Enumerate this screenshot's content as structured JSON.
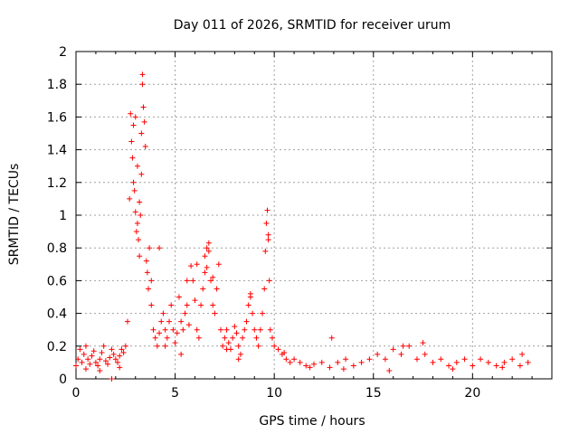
{
  "chart_data": {
    "type": "scatter",
    "title": "Day 011 of 2026, SRMTID for receiver urum",
    "xlabel": "GPS time / hours",
    "ylabel": "SRMTID / TECUs",
    "xlim": [
      0,
      24
    ],
    "ylim": [
      0,
      2
    ],
    "xticks": [
      0,
      5,
      10,
      15,
      20
    ],
    "yticks": [
      0,
      0.2,
      0.4,
      0.6,
      0.8,
      1,
      1.2,
      1.4,
      1.6,
      1.8,
      2
    ],
    "xtick_labels": [
      "0",
      "5",
      "10",
      "15",
      "20"
    ],
    "ytick_labels": [
      "0",
      "0.2",
      "0.4",
      "0.6",
      "0.8",
      "1",
      "1.2",
      "1.4",
      "1.6",
      "1.8",
      "2"
    ],
    "grid": true,
    "marker": "+",
    "color": "#ff0000",
    "series": [
      {
        "name": "SRMTID",
        "x": [
          0.0,
          0.1,
          0.2,
          0.3,
          0.4,
          0.5,
          0.6,
          0.7,
          0.8,
          0.9,
          1.0,
          1.1,
          1.2,
          1.3,
          1.4,
          1.5,
          1.6,
          1.7,
          1.8,
          1.9,
          2.0,
          2.1,
          2.2,
          2.3,
          2.4,
          2.5,
          2.6,
          2.7,
          2.75,
          2.8,
          2.85,
          2.9,
          2.95,
          3.0,
          3.05,
          3.1,
          3.15,
          3.2,
          3.25,
          3.3,
          3.35,
          3.4,
          3.45,
          3.5,
          3.55,
          3.6,
          3.65,
          3.7,
          3.8,
          3.9,
          4.0,
          4.1,
          4.2,
          4.3,
          4.4,
          4.5,
          4.6,
          4.7,
          4.8,
          4.9,
          5.0,
          5.1,
          5.2,
          5.3,
          5.4,
          5.5,
          5.6,
          5.7,
          5.8,
          5.9,
          6.0,
          6.1,
          6.2,
          6.3,
          6.4,
          6.5,
          6.6,
          6.7,
          6.8,
          6.9,
          7.0,
          7.1,
          7.2,
          7.3,
          7.4,
          7.5,
          7.6,
          7.7,
          7.8,
          7.9,
          8.0,
          8.1,
          8.2,
          8.3,
          8.4,
          8.5,
          8.6,
          8.7,
          8.8,
          8.9,
          9.0,
          9.1,
          9.2,
          9.3,
          9.4,
          9.5,
          9.55,
          9.6,
          9.65,
          9.7,
          9.75,
          9.8,
          9.9,
          10.0,
          10.2,
          10.4,
          10.6,
          10.8,
          11.0,
          11.3,
          11.6,
          12.0,
          12.4,
          12.8,
          12.9,
          13.2,
          13.6,
          14.0,
          14.4,
          14.8,
          15.2,
          15.6,
          16.0,
          16.4,
          16.8,
          17.2,
          17.6,
          18.0,
          18.4,
          18.8,
          19.2,
          19.6,
          20.0,
          20.4,
          20.8,
          21.2,
          21.6,
          22.0,
          22.4,
          22.8,
          1.8,
          2.9,
          3.0,
          3.1,
          3.2,
          3.3,
          3.35,
          4.2,
          5.6,
          6.1,
          6.5,
          6.6,
          6.7,
          6.9,
          8.8,
          9.7,
          0.5,
          1.2,
          2.2,
          3.8,
          4.5,
          5.3,
          7.6,
          8.2,
          10.5,
          11.8,
          13.5,
          15.8,
          16.5,
          17.5,
          19.0,
          21.5,
          22.5
        ],
        "y": [
          0.08,
          0.12,
          0.18,
          0.1,
          0.15,
          0.2,
          0.12,
          0.09,
          0.14,
          0.17,
          0.1,
          0.08,
          0.12,
          0.16,
          0.2,
          0.11,
          0.09,
          0.13,
          0.18,
          0.15,
          0.12,
          0.1,
          0.14,
          0.18,
          0.16,
          0.2,
          0.35,
          1.1,
          1.62,
          1.45,
          1.35,
          1.2,
          1.15,
          1.02,
          0.9,
          0.95,
          0.85,
          0.75,
          1.0,
          1.25,
          1.86,
          1.66,
          1.57,
          1.42,
          0.72,
          0.65,
          0.55,
          0.8,
          0.45,
          0.3,
          0.25,
          0.2,
          0.28,
          0.35,
          0.4,
          0.3,
          0.25,
          0.35,
          0.45,
          0.3,
          0.22,
          0.28,
          0.5,
          0.35,
          0.3,
          0.4,
          0.45,
          0.33,
          0.69,
          0.6,
          0.48,
          0.3,
          0.25,
          0.45,
          0.55,
          0.65,
          0.8,
          0.83,
          0.6,
          0.45,
          0.4,
          0.55,
          0.7,
          0.3,
          0.2,
          0.25,
          0.3,
          0.22,
          0.18,
          0.25,
          0.32,
          0.28,
          0.2,
          0.15,
          0.25,
          0.3,
          0.35,
          0.45,
          0.5,
          0.4,
          0.3,
          0.25,
          0.2,
          0.3,
          0.4,
          0.55,
          0.78,
          0.95,
          1.03,
          0.85,
          0.6,
          0.3,
          0.25,
          0.2,
          0.18,
          0.15,
          0.12,
          0.1,
          0.12,
          0.1,
          0.08,
          0.09,
          0.1,
          0.07,
          0.25,
          0.1,
          0.12,
          0.08,
          0.1,
          0.12,
          0.15,
          0.12,
          0.18,
          0.15,
          0.2,
          0.12,
          0.15,
          0.1,
          0.12,
          0.08,
          0.1,
          0.12,
          0.08,
          0.12,
          0.1,
          0.08,
          0.1,
          0.12,
          0.08,
          0.1,
          0.0,
          1.55,
          1.6,
          1.3,
          1.08,
          1.5,
          1.8,
          0.8,
          0.6,
          0.7,
          0.75,
          0.68,
          0.78,
          0.62,
          0.52,
          0.88,
          0.06,
          0.05,
          0.07,
          0.6,
          0.2,
          0.15,
          0.18,
          0.12,
          0.16,
          0.07,
          0.06,
          0.05,
          0.2,
          0.22,
          0.06,
          0.07,
          0.15
        ]
      }
    ]
  }
}
